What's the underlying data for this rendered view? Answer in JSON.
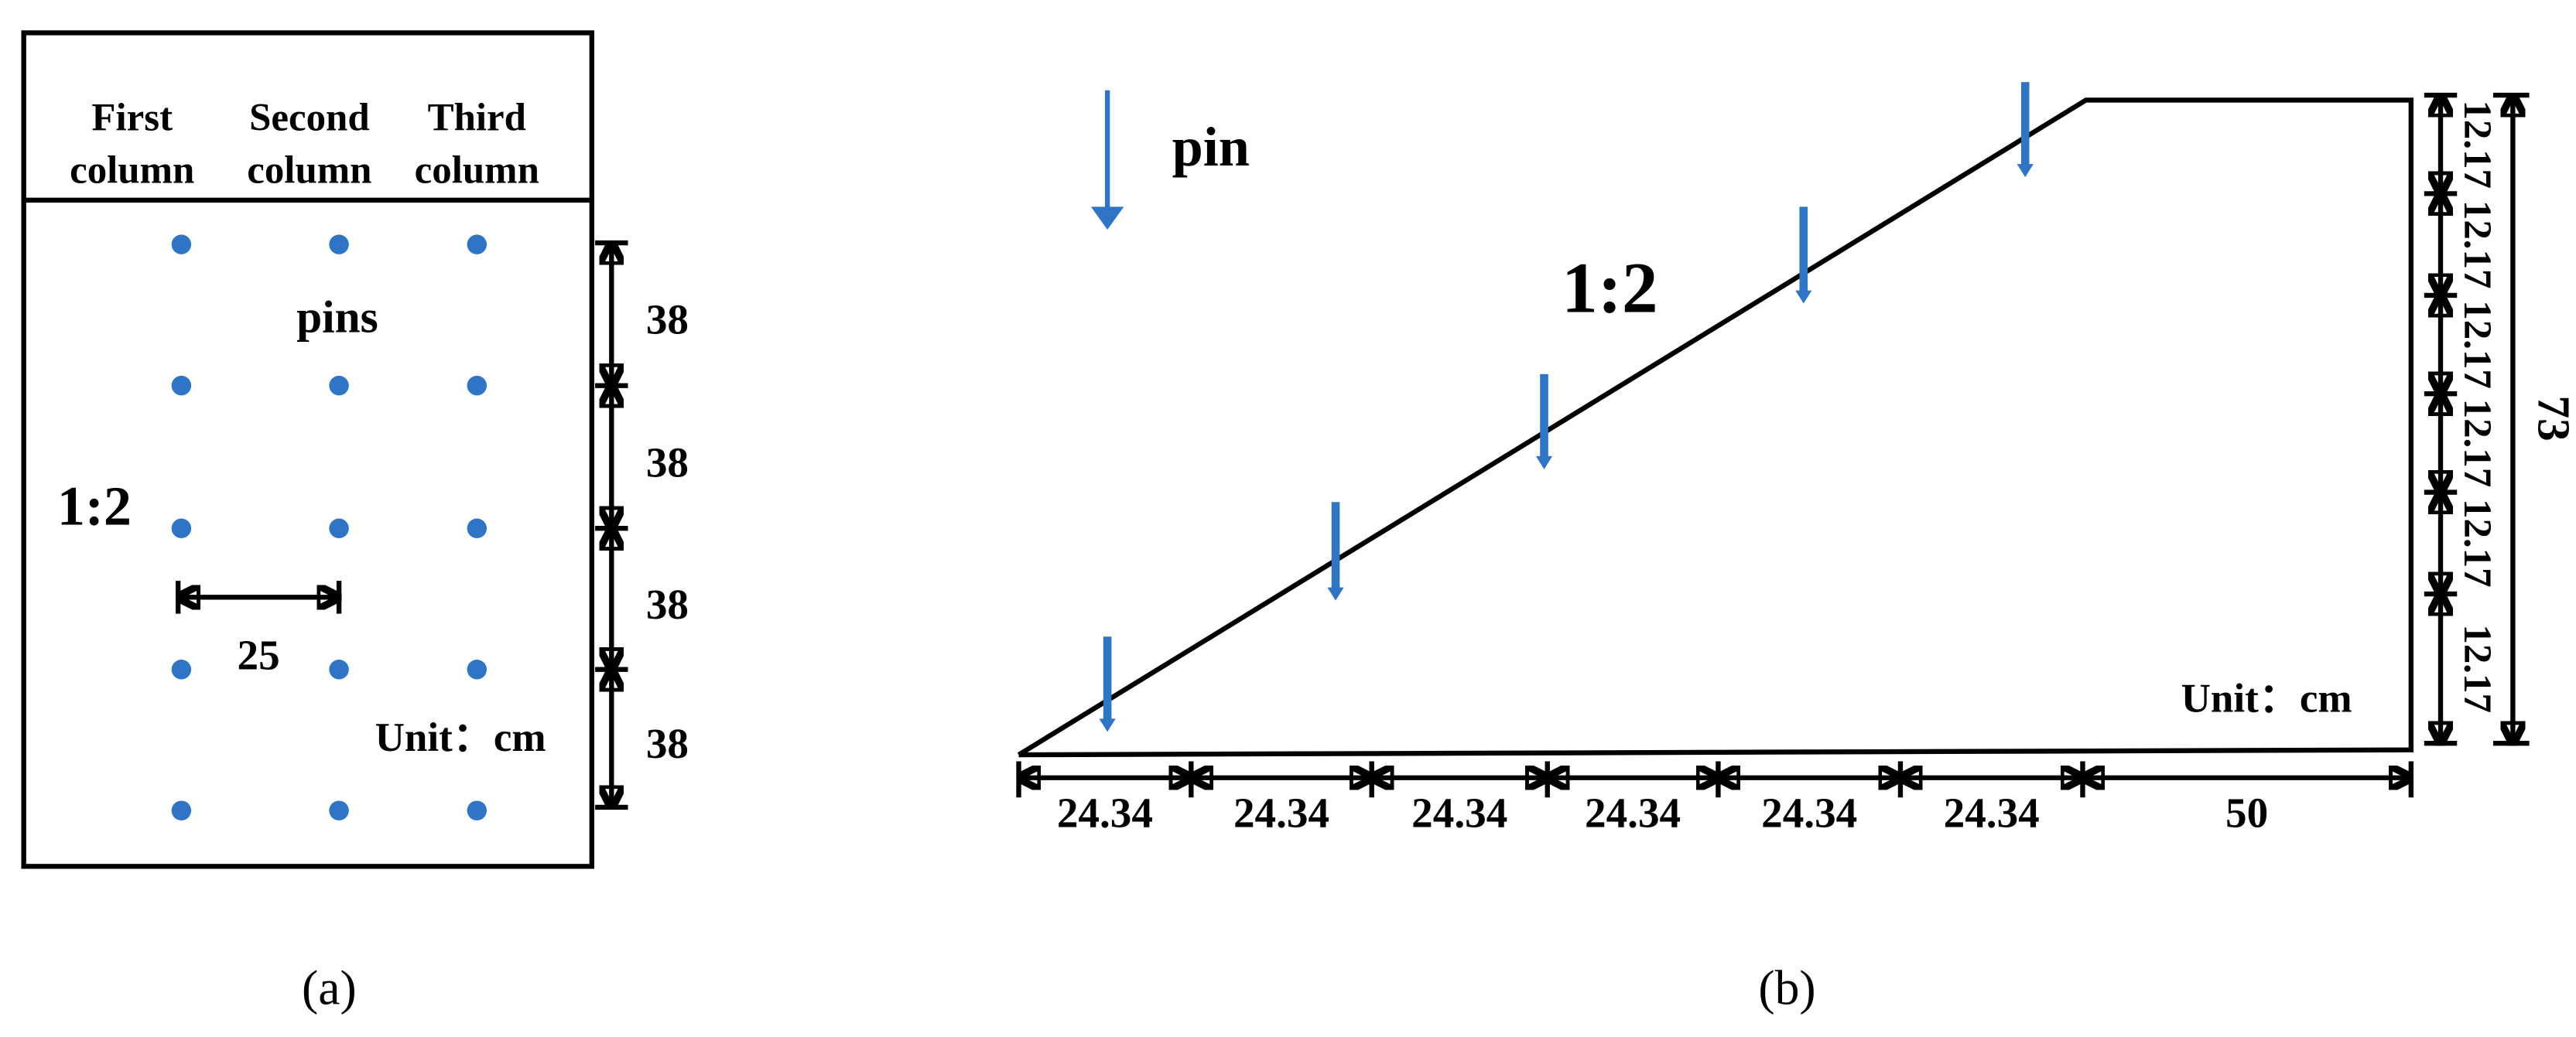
{
  "panel_a": {
    "headers": [
      [
        "First",
        "column"
      ],
      [
        "Second",
        "column"
      ],
      [
        "Third",
        "column"
      ]
    ],
    "pins_label": "pins",
    "ratio": "1:2",
    "spacing": 25,
    "row_spacings": [
      38,
      38,
      38,
      38
    ],
    "unit": "Unit：cm",
    "caption": "(a)"
  },
  "panel_b": {
    "legend": "pin",
    "ratio": "1:2",
    "bottom_dims": [
      24.34,
      24.34,
      24.34,
      24.34,
      24.34,
      24.34,
      50
    ],
    "right_dims": [
      12.17,
      12.17,
      12.17,
      12.17,
      12.17,
      12.17
    ],
    "height": 73,
    "unit": "Unit：cm",
    "caption": "(b)"
  }
}
